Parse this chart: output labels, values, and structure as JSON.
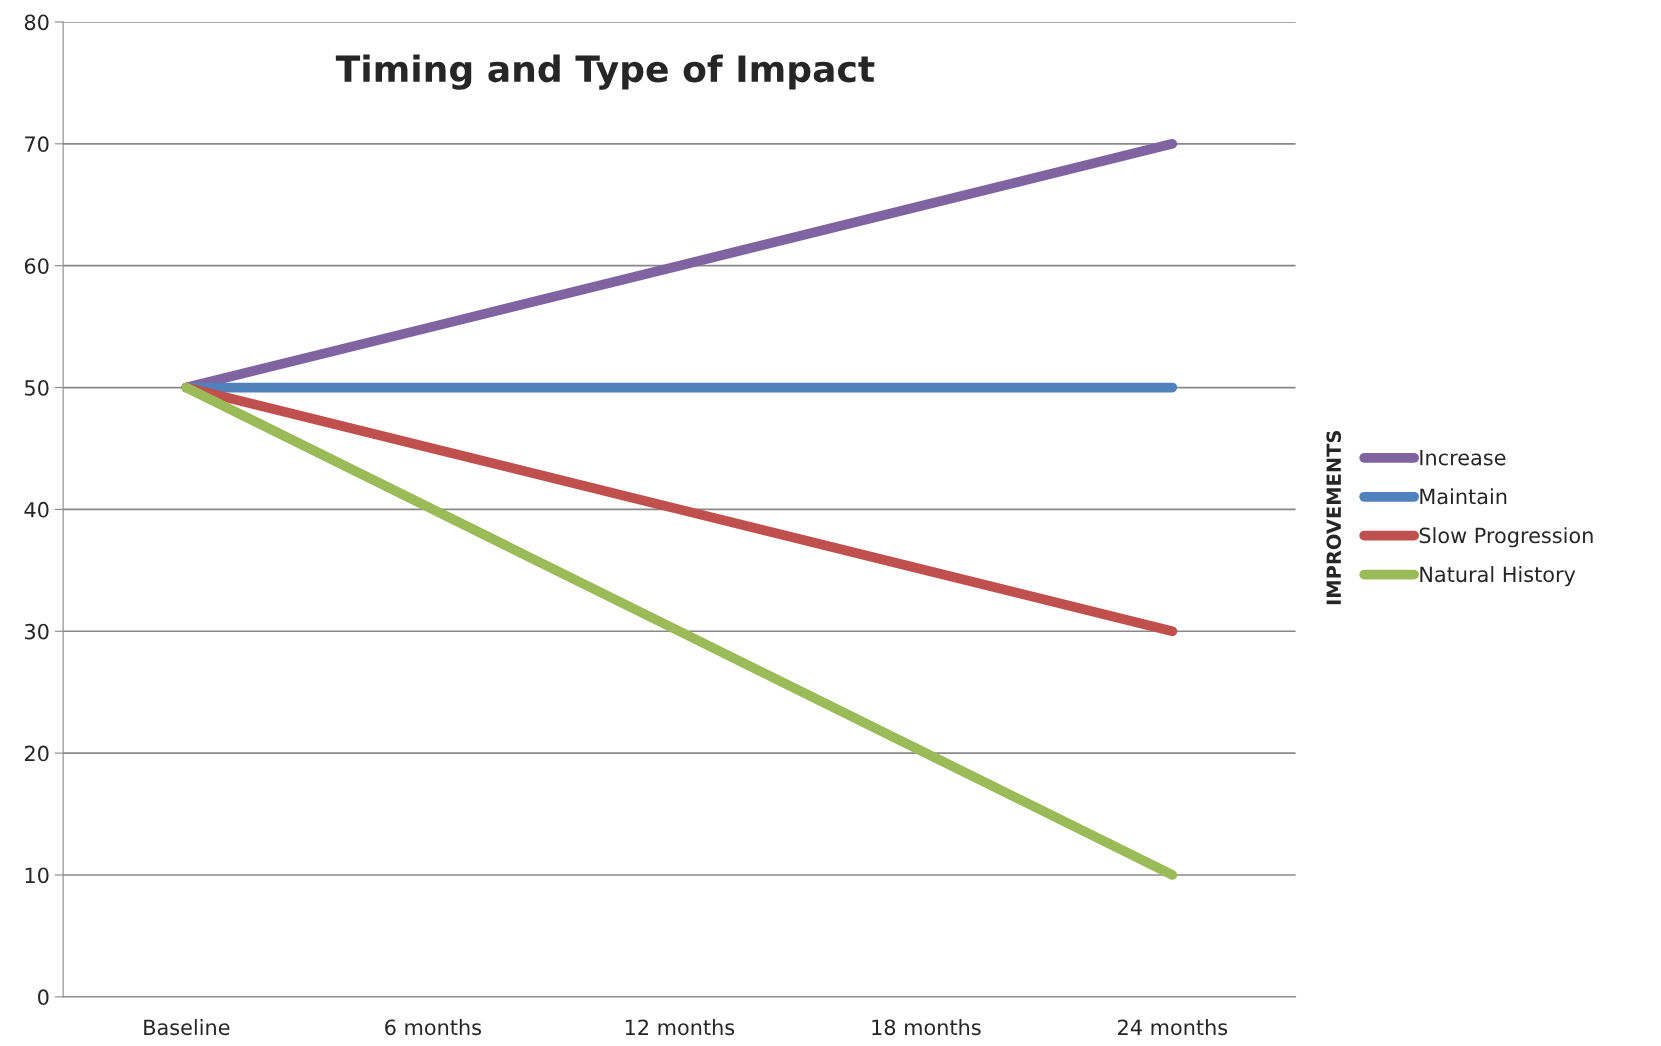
{
  "chart_data": {
    "type": "line",
    "title": "Timing and Type of Impact",
    "legend_title": "IMPROVEMENTS",
    "categories": [
      "Baseline",
      "6 months",
      "12 months",
      "18 months",
      "24 months"
    ],
    "series": [
      {
        "name": "Increase",
        "color": "#8064a2",
        "values": [
          50,
          55,
          60,
          65,
          70
        ]
      },
      {
        "name": "Maintain",
        "color": "#4f81bd",
        "values": [
          50,
          50,
          50,
          50,
          50
        ]
      },
      {
        "name": "Slow Progression",
        "color": "#c0504d",
        "values": [
          50,
          45,
          40,
          35,
          30
        ]
      },
      {
        "name": "Natural History",
        "color": "#9bbb59",
        "values": [
          50,
          40,
          30,
          20,
          10
        ]
      }
    ],
    "ylim": [
      0,
      80
    ],
    "yticks": [
      0,
      10,
      20,
      30,
      40,
      50,
      60,
      70,
      80
    ],
    "grid": "y",
    "legend": "right",
    "marker": "none",
    "line_style": "solid"
  }
}
